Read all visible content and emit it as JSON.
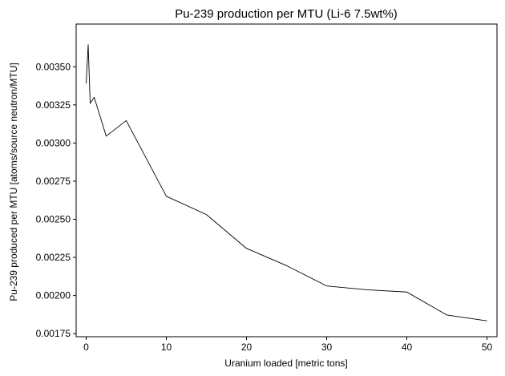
{
  "chart_data": {
    "type": "line",
    "title": "Pu-239 production per MTU (Li-6 7.5wt%)",
    "xlabel": "Uranium loaded [metric tons]",
    "ylabel": "Pu-239 produced per MTU [atoms/source neutron/MTU]",
    "xlim": [
      -1.25,
      51.25
    ],
    "ylim": [
      0.00173,
      0.00378
    ],
    "xticks": [
      0,
      10,
      20,
      30,
      40,
      50
    ],
    "xtick_labels": [
      "0",
      "10",
      "20",
      "30",
      "40",
      "50"
    ],
    "yticks": [
      0.00175,
      0.002,
      0.00225,
      0.0025,
      0.00275,
      0.003,
      0.00325,
      0.0035
    ],
    "ytick_labels": [
      "0.00175",
      "0.00200",
      "0.00225",
      "0.00250",
      "0.00275",
      "0.00300",
      "0.00325",
      "0.00350"
    ],
    "grid": false,
    "series": [
      {
        "color": "#000000",
        "x": [
          0.0,
          0.25,
          0.5,
          1.0,
          2.5,
          5,
          10,
          15,
          20,
          25,
          30,
          35,
          40,
          45,
          50
        ],
        "y": [
          0.00339,
          0.003645,
          0.00326,
          0.0033,
          0.003045,
          0.003147,
          0.002651,
          0.002531,
          0.002309,
          0.002196,
          0.002063,
          0.002038,
          0.002023,
          0.001872,
          0.001834
        ]
      }
    ]
  }
}
